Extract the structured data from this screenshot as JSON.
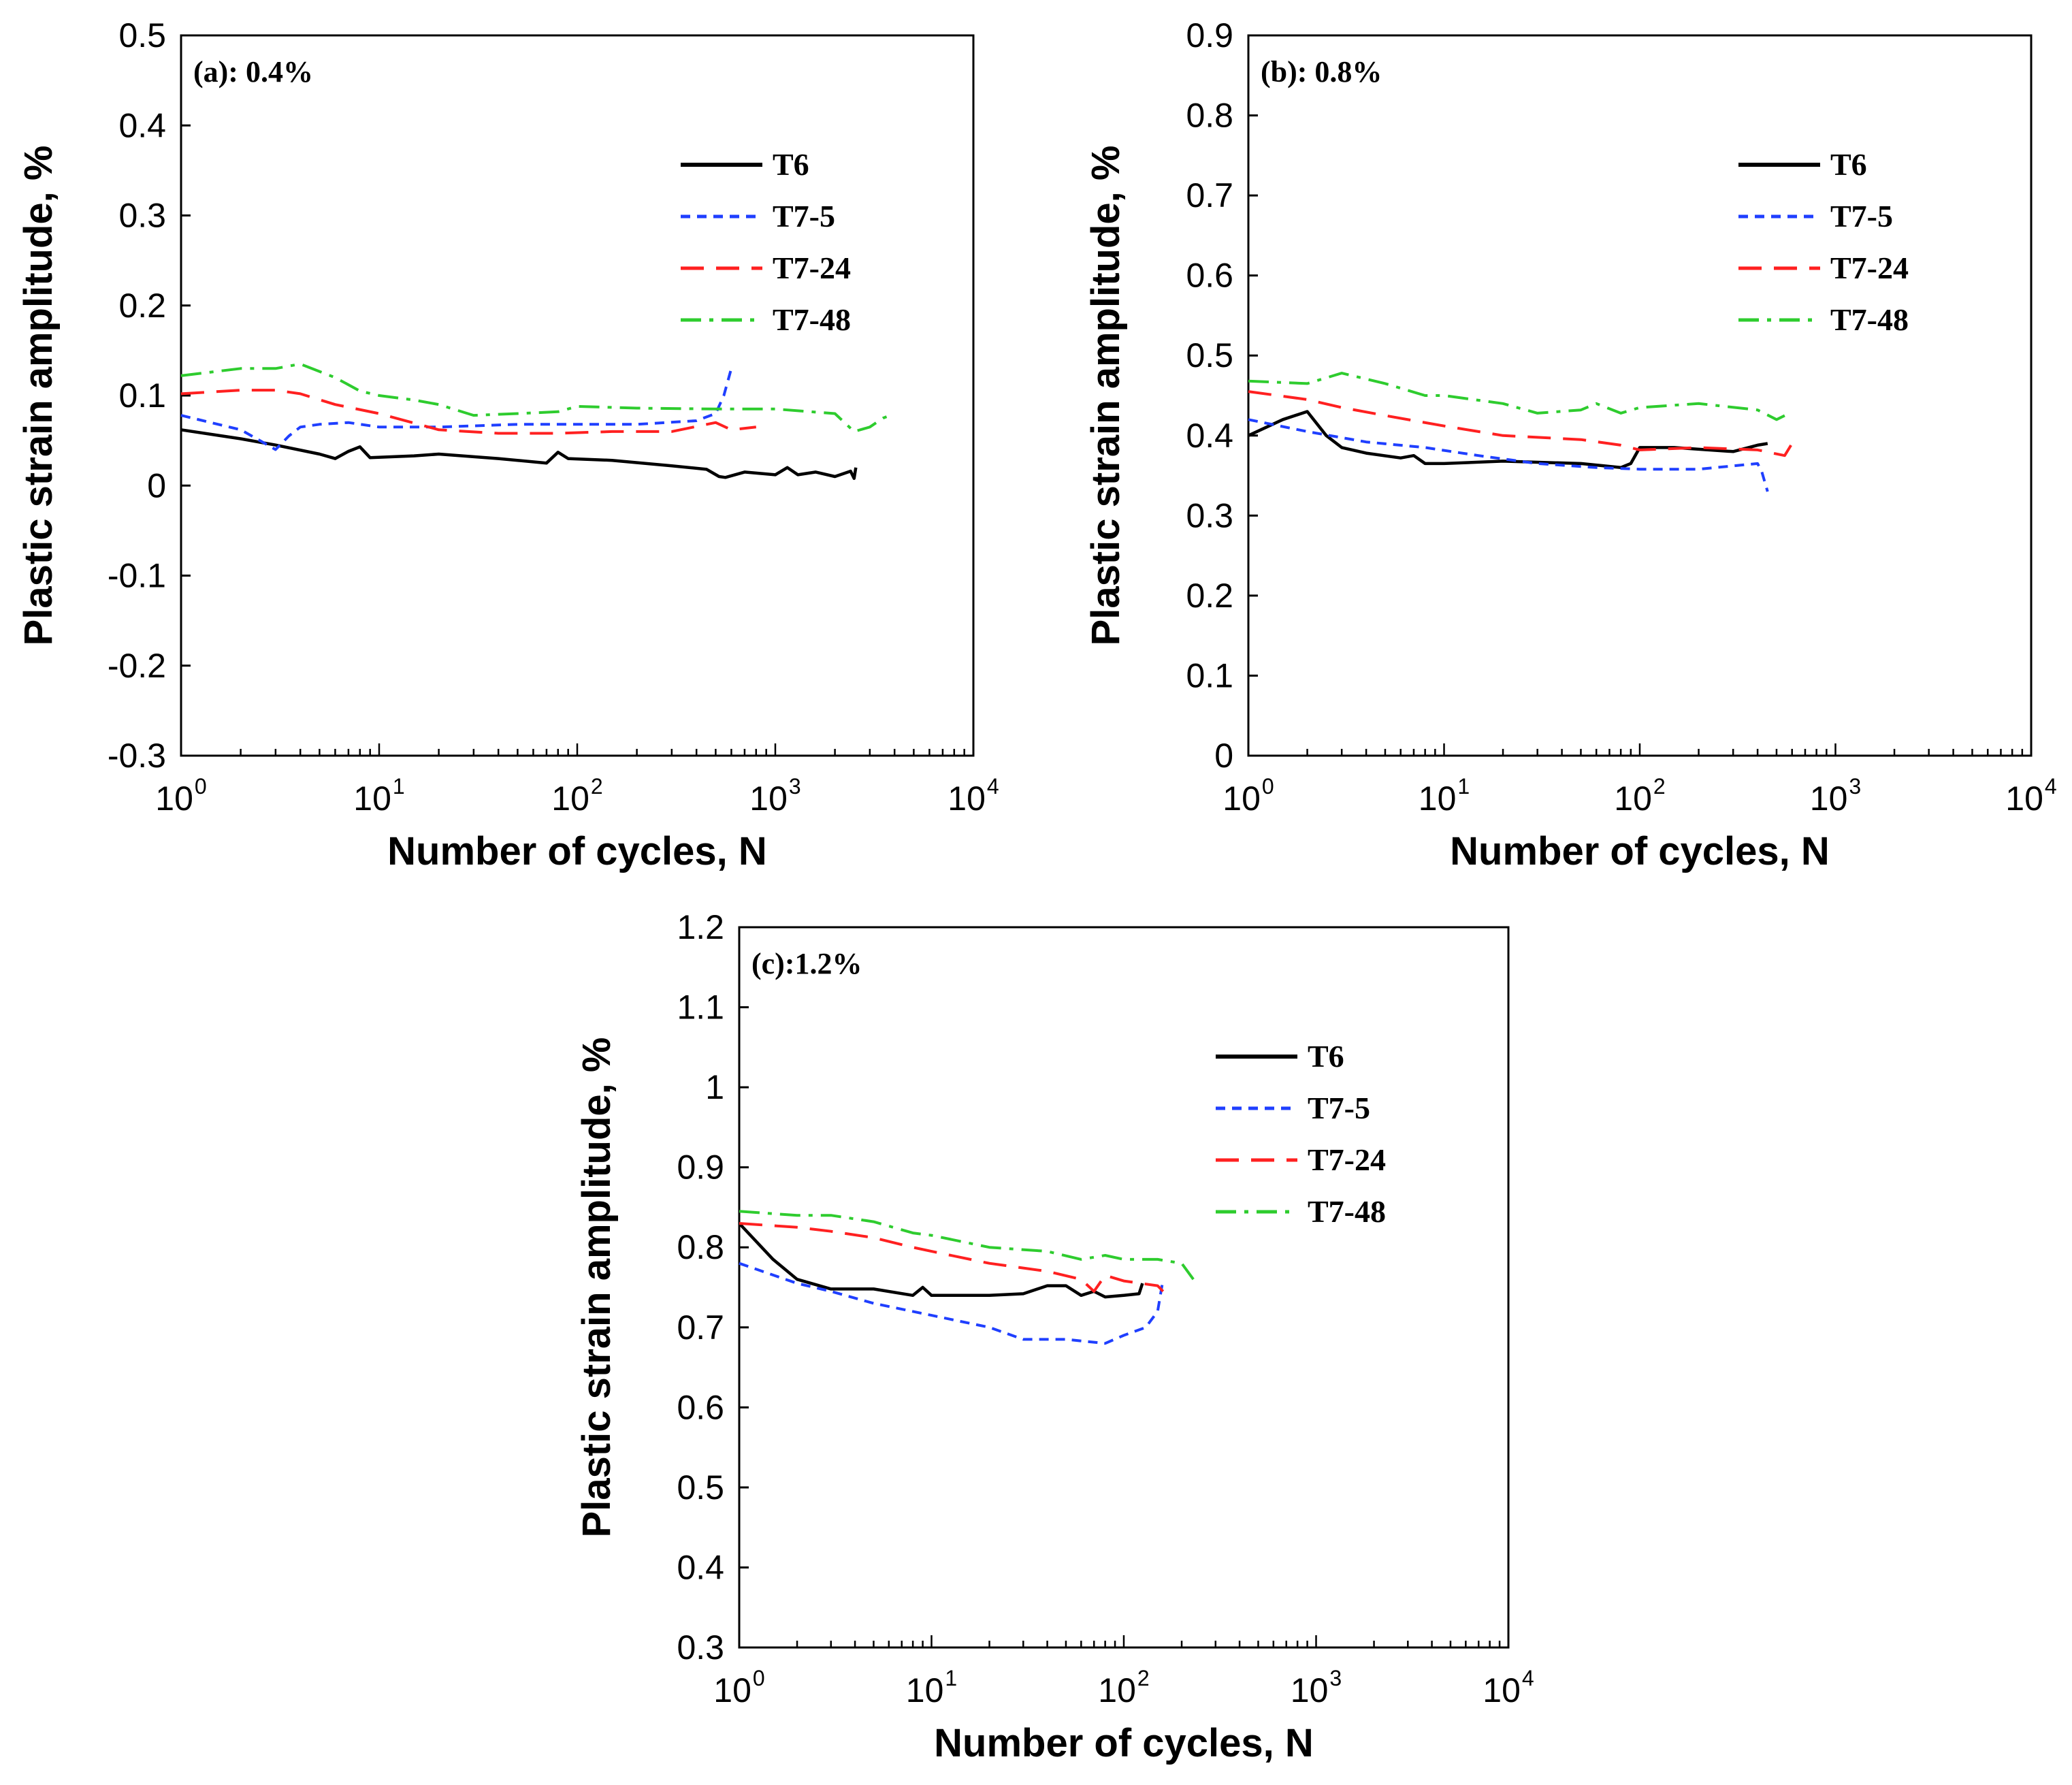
{
  "chart_data": [
    {
      "type": "line",
      "title": "(a): 0.4%",
      "xlabel": "Number of cycles, N",
      "ylabel": "Plastic strain amplitude, %",
      "xscale": "log",
      "xlim": [
        1,
        10000
      ],
      "ylim": [
        -0.3,
        0.5
      ],
      "yticks": [
        "-0.3",
        "-0.2",
        "-0.1",
        "0",
        "0.1",
        "0.2",
        "0.3",
        "0.4",
        "0.5"
      ],
      "xtick_bases": [
        "10",
        "10",
        "10",
        "10",
        "10"
      ],
      "xtick_exps": [
        "0",
        "1",
        "2",
        "3",
        "4"
      ],
      "legend_position": "top-right",
      "series": [
        {
          "name": "T6",
          "color": "#000000",
          "style": "solid",
          "x": [
            1,
            2,
            3,
            5,
            6,
            7,
            8,
            9,
            15,
            20,
            40,
            70,
            80,
            90,
            150,
            300,
            450,
            520,
            560,
            700,
            1000,
            1150,
            1300,
            1600,
            2000,
            2400,
            2500,
            2550
          ],
          "y": [
            0.062,
            0.052,
            0.045,
            0.035,
            0.03,
            0.038,
            0.043,
            0.031,
            0.033,
            0.035,
            0.03,
            0.025,
            0.037,
            0.03,
            0.028,
            0.022,
            0.018,
            0.01,
            0.009,
            0.015,
            0.012,
            0.02,
            0.012,
            0.015,
            0.01,
            0.016,
            0.008,
            0.02
          ]
        },
        {
          "name": "T7-5",
          "color": "#1f3fff",
          "style": "dotted",
          "x": [
            1,
            2,
            2.5,
            3,
            3.5,
            4,
            5,
            7,
            10,
            20,
            50,
            100,
            200,
            400,
            500,
            550,
            600
          ],
          "y": [
            0.078,
            0.062,
            0.05,
            0.04,
            0.055,
            0.065,
            0.068,
            0.07,
            0.065,
            0.065,
            0.068,
            0.068,
            0.068,
            0.072,
            0.08,
            0.1,
            0.13
          ]
        },
        {
          "name": "T7-24",
          "color": "#ff2020",
          "style": "dashed",
          "x": [
            1,
            2,
            3,
            4,
            6,
            10,
            20,
            40,
            80,
            150,
            300,
            500,
            600,
            800
          ],
          "y": [
            0.102,
            0.106,
            0.106,
            0.102,
            0.09,
            0.08,
            0.062,
            0.058,
            0.058,
            0.06,
            0.06,
            0.07,
            0.062,
            0.065
          ]
        },
        {
          "name": "T7-48",
          "color": "#2ecc2e",
          "style": "dashdot",
          "x": [
            1,
            2,
            3,
            4,
            6,
            8,
            10,
            15,
            20,
            30,
            50,
            80,
            100,
            200,
            500,
            1000,
            2000,
            2500,
            3000,
            3500,
            3800
          ],
          "y": [
            0.122,
            0.13,
            0.13,
            0.135,
            0.12,
            0.105,
            0.1,
            0.095,
            0.09,
            0.078,
            0.08,
            0.082,
            0.088,
            0.086,
            0.085,
            0.085,
            0.08,
            0.06,
            0.065,
            0.075,
            0.078
          ]
        }
      ]
    },
    {
      "type": "line",
      "title": "(b): 0.8%",
      "xlabel": "Number of cycles, N",
      "ylabel": "Plastic strain amplitude, %",
      "xscale": "log",
      "xlim": [
        1,
        10000
      ],
      "ylim": [
        0,
        0.9
      ],
      "yticks": [
        "0",
        "0.1",
        "0.2",
        "0.3",
        "0.4",
        "0.5",
        "0.6",
        "0.7",
        "0.8",
        "0.9"
      ],
      "xtick_bases": [
        "10",
        "10",
        "10",
        "10",
        "10"
      ],
      "xtick_exps": [
        "0",
        "1",
        "2",
        "3",
        "4"
      ],
      "legend_position": "top-right",
      "series": [
        {
          "name": "T6",
          "color": "#000000",
          "style": "solid",
          "x": [
            1,
            1.5,
            2,
            2.5,
            3,
            4,
            6,
            7,
            8,
            10,
            20,
            50,
            80,
            90,
            100,
            150,
            300,
            400,
            450
          ],
          "y": [
            0.4,
            0.42,
            0.43,
            0.4,
            0.385,
            0.378,
            0.372,
            0.375,
            0.365,
            0.365,
            0.368,
            0.365,
            0.36,
            0.365,
            0.385,
            0.385,
            0.38,
            0.388,
            0.39
          ]
        },
        {
          "name": "T7-5",
          "color": "#1f3fff",
          "style": "dotted",
          "x": [
            1,
            2,
            4,
            8,
            15,
            30,
            60,
            100,
            200,
            400,
            420,
            450
          ],
          "y": [
            0.42,
            0.405,
            0.392,
            0.385,
            0.375,
            0.365,
            0.36,
            0.358,
            0.358,
            0.365,
            0.355,
            0.33
          ]
        },
        {
          "name": "T7-24",
          "color": "#ff2020",
          "style": "dashed",
          "x": [
            1,
            2,
            3,
            5,
            10,
            20,
            50,
            80,
            100,
            200,
            400,
            550,
            600
          ],
          "y": [
            0.455,
            0.445,
            0.435,
            0.425,
            0.412,
            0.4,
            0.395,
            0.388,
            0.382,
            0.385,
            0.382,
            0.375,
            0.39
          ]
        },
        {
          "name": "T7-48",
          "color": "#2ecc2e",
          "style": "dashdot",
          "x": [
            1,
            2,
            3,
            5,
            8,
            10,
            20,
            30,
            50,
            60,
            80,
            100,
            200,
            400,
            500,
            550
          ],
          "y": [
            0.468,
            0.465,
            0.478,
            0.465,
            0.45,
            0.45,
            0.44,
            0.428,
            0.432,
            0.44,
            0.428,
            0.435,
            0.44,
            0.432,
            0.42,
            0.425
          ]
        }
      ]
    },
    {
      "type": "line",
      "title": "(c):1.2%",
      "xlabel": "Number of cycles, N",
      "ylabel": "Plastic strain amplitude, %",
      "xscale": "log",
      "xlim": [
        1,
        10000
      ],
      "ylim": [
        0.3,
        1.2
      ],
      "yticks": [
        "0.3",
        "0.4",
        "0.5",
        "0.6",
        "0.7",
        "0.8",
        "0.9",
        "1",
        "1.1",
        "1.2"
      ],
      "xtick_bases": [
        "10",
        "10",
        "10",
        "10",
        "10"
      ],
      "xtick_exps": [
        "0",
        "1",
        "2",
        "3",
        "4"
      ],
      "legend_position": "top-right",
      "series": [
        {
          "name": "T6",
          "color": "#000000",
          "style": "solid",
          "x": [
            1,
            1.5,
            2,
            3,
            5,
            8,
            9,
            10,
            20,
            30,
            40,
            50,
            60,
            70,
            80,
            100,
            120,
            125
          ],
          "y": [
            0.83,
            0.785,
            0.76,
            0.748,
            0.748,
            0.74,
            0.75,
            0.74,
            0.74,
            0.742,
            0.752,
            0.752,
            0.74,
            0.745,
            0.738,
            0.74,
            0.742,
            0.755
          ]
        },
        {
          "name": "T7-5",
          "color": "#1f3fff",
          "style": "dotted",
          "x": [
            1,
            2,
            3,
            5,
            10,
            20,
            30,
            50,
            80,
            100,
            130,
            150,
            160
          ],
          "y": [
            0.78,
            0.755,
            0.745,
            0.73,
            0.715,
            0.7,
            0.685,
            0.685,
            0.68,
            0.69,
            0.7,
            0.72,
            0.76
          ]
        },
        {
          "name": "T7-24",
          "color": "#ff2020",
          "style": "dashed",
          "x": [
            1,
            2,
            3,
            5,
            8,
            10,
            20,
            40,
            60,
            70,
            80,
            100,
            150,
            160
          ],
          "y": [
            0.83,
            0.825,
            0.82,
            0.812,
            0.8,
            0.795,
            0.78,
            0.77,
            0.76,
            0.745,
            0.765,
            0.758,
            0.752,
            0.745
          ]
        },
        {
          "name": "T7-48",
          "color": "#2ecc2e",
          "style": "dashdot",
          "x": [
            1,
            2,
            3,
            5,
            8,
            10,
            20,
            40,
            60,
            80,
            100,
            150,
            200,
            230
          ],
          "y": [
            0.845,
            0.84,
            0.84,
            0.832,
            0.818,
            0.815,
            0.8,
            0.795,
            0.785,
            0.79,
            0.785,
            0.785,
            0.78,
            0.76
          ]
        }
      ]
    }
  ]
}
